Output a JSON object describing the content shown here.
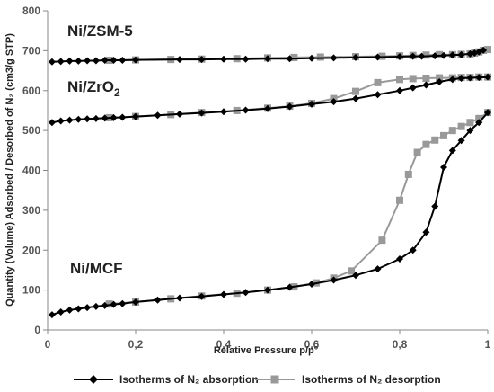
{
  "colors": {
    "adsorption": "#000000",
    "desorption": "#999999",
    "axis": "#888888",
    "tick_text": "#555555"
  },
  "chart_data": {
    "type": "scatter",
    "title": "",
    "xlabel": "Relative Pressure p/p°",
    "ylabel": "Quantity (Volume) Adsorbed / Desorbed of N₂ (cm3/g STP)",
    "xlim": [
      0,
      1
    ],
    "ylim": [
      0,
      800
    ],
    "x_ticks": [
      0,
      0.2,
      0.4,
      0.6,
      0.8,
      1
    ],
    "x_tick_labels": [
      "0",
      "0,2",
      "0,4",
      "0,6",
      "0,8",
      "1"
    ],
    "y_ticks": [
      0,
      100,
      200,
      300,
      400,
      500,
      600,
      700,
      800
    ],
    "y_tick_labels": [
      "0",
      "100",
      "200",
      "300",
      "400",
      "500",
      "600",
      "700",
      "800"
    ],
    "grid": false,
    "legend_position": "bottom",
    "legend": [
      {
        "label": "Isotherms of N₂ absorption",
        "marker": "diamond",
        "color": "#000000"
      },
      {
        "label": "Isotherms of N₂ desorption",
        "marker": "square",
        "color": "#999999"
      }
    ],
    "annotations": [
      "Ni/ZSM-5",
      "Ni/ZrO",
      "2",
      "Ni/MCF"
    ],
    "series": [
      {
        "sample": "Ni/ZSM-5",
        "kind": "adsorption",
        "marker": "diamond",
        "x": [
          0.01,
          0.03,
          0.05,
          0.07,
          0.09,
          0.11,
          0.13,
          0.15,
          0.17,
          0.2,
          0.3,
          0.35,
          0.4,
          0.45,
          0.5,
          0.55,
          0.6,
          0.65,
          0.7,
          0.75,
          0.8,
          0.83,
          0.85,
          0.88,
          0.9,
          0.92,
          0.94,
          0.96,
          0.97,
          0.98,
          0.99
        ],
        "y": [
          672,
          673,
          674,
          674,
          675,
          675,
          676,
          676,
          676,
          677,
          678,
          678,
          679,
          679,
          680,
          680,
          681,
          682,
          683,
          684,
          685,
          686,
          686,
          687,
          688,
          689,
          690,
          692,
          694,
          697,
          701
        ]
      },
      {
        "sample": "Ni/ZSM-5",
        "kind": "desorption",
        "marker": "square",
        "x": [
          0.14,
          0.2,
          0.28,
          0.35,
          0.43,
          0.5,
          0.56,
          0.62,
          0.7,
          0.76,
          0.8,
          0.83,
          0.86,
          0.89,
          0.92,
          0.94,
          0.96,
          0.97,
          0.98,
          0.99,
          1.0
        ],
        "y": [
          676,
          677,
          678,
          679,
          680,
          682,
          683,
          684,
          685,
          686,
          687,
          688,
          689,
          690,
          690,
          691,
          692,
          694,
          697,
          701,
          703
        ]
      },
      {
        "sample": "Ni/ZrO2",
        "kind": "adsorption",
        "marker": "diamond",
        "x": [
          0.01,
          0.03,
          0.05,
          0.07,
          0.09,
          0.11,
          0.13,
          0.15,
          0.17,
          0.2,
          0.25,
          0.3,
          0.35,
          0.4,
          0.45,
          0.5,
          0.55,
          0.6,
          0.65,
          0.7,
          0.75,
          0.8,
          0.83,
          0.86,
          0.89,
          0.92,
          0.94,
          0.96,
          0.98,
          1.0
        ],
        "y": [
          520,
          524,
          526,
          528,
          529,
          530,
          531,
          532,
          533,
          535,
          538,
          541,
          544,
          547,
          551,
          555,
          560,
          566,
          572,
          580,
          590,
          600,
          607,
          614,
          622,
          628,
          631,
          632,
          633,
          634
        ]
      },
      {
        "sample": "Ni/ZrO2",
        "kind": "desorption",
        "marker": "square",
        "x": [
          0.14,
          0.2,
          0.28,
          0.35,
          0.43,
          0.5,
          0.55,
          0.6,
          0.65,
          0.7,
          0.75,
          0.8,
          0.83,
          0.86,
          0.89,
          0.92,
          0.94,
          0.96,
          0.98,
          1.0
        ],
        "y": [
          532,
          535,
          540,
          545,
          550,
          556,
          561,
          568,
          580,
          598,
          620,
          628,
          630,
          631,
          632,
          632,
          633,
          633,
          634,
          634
        ]
      },
      {
        "sample": "Ni/MCF",
        "kind": "adsorption",
        "marker": "diamond",
        "x": [
          0.01,
          0.03,
          0.05,
          0.07,
          0.09,
          0.11,
          0.13,
          0.15,
          0.17,
          0.2,
          0.25,
          0.3,
          0.35,
          0.4,
          0.45,
          0.5,
          0.55,
          0.6,
          0.65,
          0.7,
          0.75,
          0.8,
          0.83,
          0.86,
          0.88,
          0.9,
          0.92,
          0.94,
          0.96,
          0.98,
          1.0
        ],
        "y": [
          38,
          45,
          50,
          53,
          56,
          59,
          61,
          64,
          66,
          70,
          75,
          80,
          84,
          89,
          94,
          100,
          107,
          115,
          125,
          137,
          153,
          178,
          200,
          245,
          310,
          408,
          450,
          475,
          500,
          520,
          545
        ]
      },
      {
        "sample": "Ni/MCF",
        "kind": "desorption",
        "marker": "square",
        "x": [
          0.14,
          0.2,
          0.28,
          0.35,
          0.43,
          0.5,
          0.56,
          0.61,
          0.65,
          0.69,
          0.76,
          0.8,
          0.82,
          0.84,
          0.86,
          0.88,
          0.9,
          0.92,
          0.94,
          0.96,
          0.98,
          1.0
        ],
        "y": [
          65,
          70,
          78,
          85,
          92,
          100,
          108,
          118,
          130,
          148,
          225,
          325,
          390,
          445,
          465,
          476,
          487,
          500,
          510,
          520,
          530,
          545
        ]
      }
    ]
  }
}
